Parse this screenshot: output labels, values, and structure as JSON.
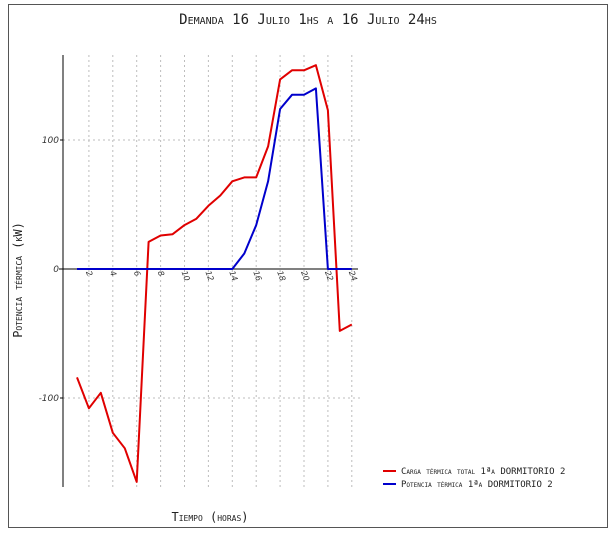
{
  "chart_data": {
    "type": "line",
    "title": "Demanda 16 Julio 1hs a 16 Julio 24hs",
    "xlabel": "Tiempo (horas)",
    "ylabel": "Potencia térmica (kW)",
    "x_ticks": [
      "2",
      "4",
      "6",
      "8",
      "10",
      "12",
      "14",
      "16",
      "18",
      "20",
      "22",
      "24"
    ],
    "y_ticks": [
      "100",
      "0",
      "-100"
    ],
    "xlim": [
      0,
      24.5
    ],
    "ylim": [
      -170,
      168
    ],
    "grid": true,
    "legend_position": "bottom-right",
    "x": [
      1,
      2,
      3,
      4,
      5,
      6,
      7,
      8,
      9,
      10,
      11,
      12,
      13,
      14,
      15,
      16,
      17,
      18,
      19,
      20,
      21,
      22,
      23,
      24
    ],
    "series": [
      {
        "name": "Carga térmica total 1ªa DORMITORIO 2",
        "color": "#e00000",
        "values": [
          -84,
          -108,
          -96,
          -127,
          -139,
          -165,
          21,
          26,
          27,
          34,
          39,
          49,
          57,
          68,
          71,
          71,
          95,
          147,
          154,
          154,
          158,
          123,
          -48,
          -43
        ]
      },
      {
        "name": "Potencia térmica 1ªa DORMITORIO 2",
        "color": "#0000cc",
        "values": [
          0,
          0,
          0,
          0,
          0,
          0,
          0,
          0,
          0,
          0,
          0,
          0,
          0,
          0,
          12,
          34,
          68,
          124,
          135,
          135,
          140,
          0,
          0,
          0
        ]
      }
    ]
  }
}
